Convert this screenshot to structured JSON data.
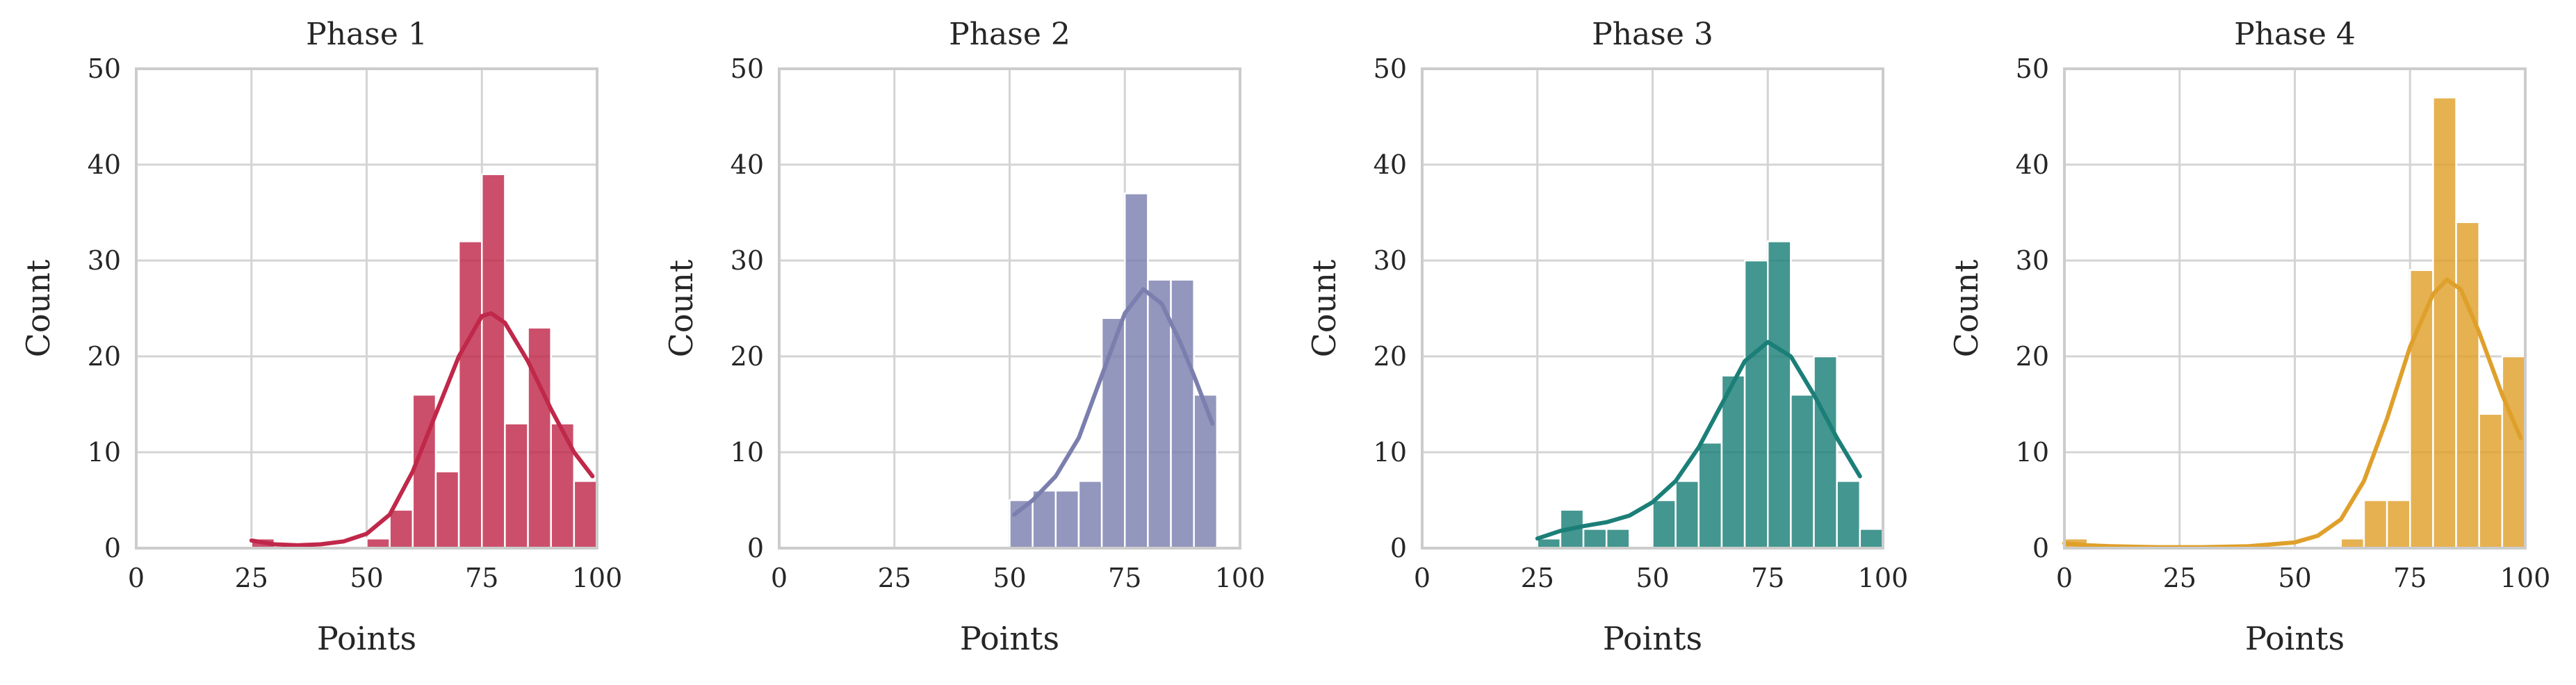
{
  "chart_data": [
    {
      "type": "bar",
      "title": "Phase 1",
      "xlabel": "Points",
      "ylabel": "Count",
      "xlim": [
        0,
        100
      ],
      "ylim": [
        0,
        50
      ],
      "xticks": [
        0,
        25,
        50,
        75,
        100
      ],
      "yticks": [
        0,
        10,
        20,
        30,
        40,
        50
      ],
      "grid": true,
      "color": "#c0284a",
      "bins": [
        [
          25,
          30,
          1
        ],
        [
          30,
          35,
          0
        ],
        [
          35,
          40,
          0
        ],
        [
          40,
          45,
          0
        ],
        [
          45,
          50,
          0
        ],
        [
          50,
          55,
          1
        ],
        [
          55,
          60,
          4
        ],
        [
          60,
          65,
          16
        ],
        [
          65,
          70,
          8
        ],
        [
          70,
          75,
          32
        ],
        [
          75,
          80,
          39
        ],
        [
          80,
          85,
          13
        ],
        [
          85,
          90,
          23
        ],
        [
          90,
          95,
          13
        ],
        [
          95,
          100,
          7
        ]
      ],
      "kde": [
        [
          25,
          0.8
        ],
        [
          30,
          0.4
        ],
        [
          35,
          0.3
        ],
        [
          40,
          0.4
        ],
        [
          45,
          0.7
        ],
        [
          50,
          1.5
        ],
        [
          55,
          3.5
        ],
        [
          60,
          8
        ],
        [
          65,
          14
        ],
        [
          70,
          20
        ],
        [
          75,
          24.2
        ],
        [
          77,
          24.5
        ],
        [
          80,
          23.5
        ],
        [
          85,
          19.5
        ],
        [
          90,
          14.5
        ],
        [
          95,
          10
        ],
        [
          99,
          7.5
        ]
      ]
    },
    {
      "type": "bar",
      "title": "Phase 2",
      "xlabel": "Points",
      "ylabel": "Count",
      "xlim": [
        0,
        100
      ],
      "ylim": [
        0,
        50
      ],
      "xticks": [
        0,
        25,
        50,
        75,
        100
      ],
      "yticks": [
        0,
        10,
        20,
        30,
        40,
        50
      ],
      "grid": true,
      "color": "#7b7fae",
      "bins": [
        [
          50,
          55,
          5
        ],
        [
          55,
          60,
          6
        ],
        [
          60,
          65,
          6
        ],
        [
          65,
          70,
          7
        ],
        [
          70,
          75,
          24
        ],
        [
          75,
          80,
          37
        ],
        [
          80,
          85,
          28
        ],
        [
          85,
          90,
          28
        ],
        [
          90,
          95,
          16
        ]
      ],
      "kde": [
        [
          51,
          3.5
        ],
        [
          55,
          5
        ],
        [
          60,
          7.5
        ],
        [
          65,
          11.5
        ],
        [
          70,
          18
        ],
        [
          75,
          24.5
        ],
        [
          79,
          27
        ],
        [
          83,
          25.5
        ],
        [
          87,
          21.5
        ],
        [
          90,
          18
        ],
        [
          94,
          13
        ]
      ]
    },
    {
      "type": "bar",
      "title": "Phase 3",
      "xlabel": "Points",
      "ylabel": "Count",
      "xlim": [
        0,
        100
      ],
      "ylim": [
        0,
        50
      ],
      "xticks": [
        0,
        25,
        50,
        75,
        100
      ],
      "yticks": [
        0,
        10,
        20,
        30,
        40,
        50
      ],
      "grid": true,
      "color": "#1b7f78",
      "bins": [
        [
          25,
          30,
          1
        ],
        [
          30,
          35,
          4
        ],
        [
          35,
          40,
          2
        ],
        [
          40,
          45,
          2
        ],
        [
          45,
          50,
          0
        ],
        [
          50,
          55,
          5
        ],
        [
          55,
          60,
          7
        ],
        [
          60,
          65,
          11
        ],
        [
          65,
          70,
          18
        ],
        [
          70,
          75,
          30
        ],
        [
          75,
          80,
          32
        ],
        [
          80,
          85,
          16
        ],
        [
          85,
          90,
          20
        ],
        [
          90,
          95,
          7
        ],
        [
          95,
          100,
          2
        ]
      ],
      "kde": [
        [
          25,
          1
        ],
        [
          30,
          1.8
        ],
        [
          35,
          2.3
        ],
        [
          40,
          2.7
        ],
        [
          45,
          3.4
        ],
        [
          50,
          4.8
        ],
        [
          55,
          7
        ],
        [
          60,
          10.5
        ],
        [
          65,
          15
        ],
        [
          70,
          19.5
        ],
        [
          75,
          21.5
        ],
        [
          80,
          20
        ],
        [
          85,
          16
        ],
        [
          90,
          11.5
        ],
        [
          95,
          7.5
        ]
      ]
    },
    {
      "type": "bar",
      "title": "Phase 4",
      "xlabel": "Points",
      "ylabel": "Count",
      "xlim": [
        0,
        100
      ],
      "ylim": [
        0,
        50
      ],
      "xticks": [
        0,
        25,
        50,
        75,
        100
      ],
      "yticks": [
        0,
        10,
        20,
        30,
        40,
        50
      ],
      "grid": true,
      "color": "#dfa02b",
      "bins": [
        [
          0,
          5,
          1
        ],
        [
          5,
          10,
          0
        ],
        [
          10,
          15,
          0
        ],
        [
          15,
          20,
          0
        ],
        [
          20,
          25,
          0
        ],
        [
          25,
          30,
          0
        ],
        [
          30,
          35,
          0
        ],
        [
          35,
          40,
          0
        ],
        [
          40,
          45,
          0
        ],
        [
          45,
          50,
          0
        ],
        [
          50,
          55,
          0
        ],
        [
          55,
          60,
          0
        ],
        [
          60,
          65,
          1
        ],
        [
          65,
          70,
          5
        ],
        [
          70,
          75,
          5
        ],
        [
          75,
          80,
          29
        ],
        [
          80,
          85,
          47
        ],
        [
          85,
          90,
          34
        ],
        [
          90,
          95,
          14
        ],
        [
          95,
          100,
          20
        ]
      ],
      "kde": [
        [
          0,
          0.5
        ],
        [
          5,
          0.3
        ],
        [
          10,
          0.2
        ],
        [
          20,
          0.1
        ],
        [
          30,
          0.1
        ],
        [
          40,
          0.2
        ],
        [
          50,
          0.6
        ],
        [
          55,
          1.3
        ],
        [
          60,
          3
        ],
        [
          65,
          7
        ],
        [
          70,
          13.5
        ],
        [
          75,
          21
        ],
        [
          80,
          26.5
        ],
        [
          83,
          28
        ],
        [
          86,
          27
        ],
        [
          90,
          22.5
        ],
        [
          95,
          16
        ],
        [
          99,
          11.5
        ]
      ]
    }
  ]
}
